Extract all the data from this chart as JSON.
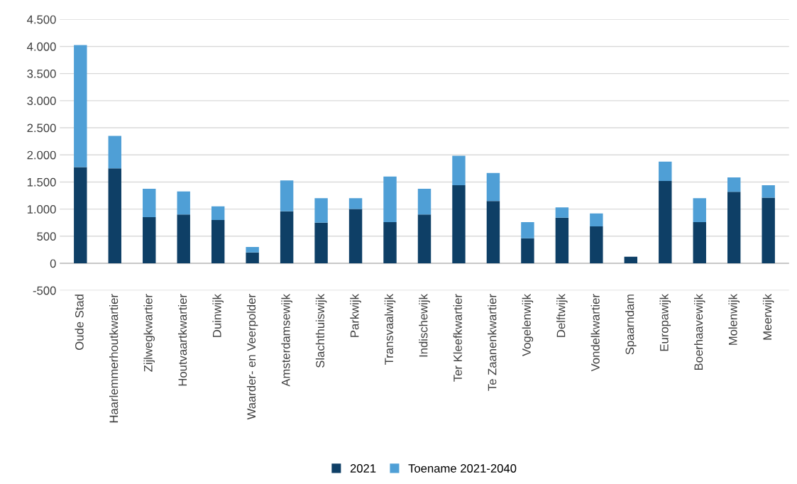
{
  "chart_data": {
    "type": "bar",
    "stacked": true,
    "categories": [
      "Oude Stad",
      "Haarlemmerhoutkwartier",
      "Zijlwegkwartier",
      "Houtvaartkwartier",
      "Duinwijk",
      "Waarder- en Veerpolder",
      "Amsterdamsewijk",
      "Slachthuiswijk",
      "Parkwijk",
      "Transvaalwijk",
      "Indischewijk",
      "Ter Kleefkwartier",
      "Te Zaanenkwartier",
      "Vogelenwijk",
      "Delftwijk",
      "Vondelkwartier",
      "Spaarndam",
      "Europawijk",
      "Boerhaavewijk",
      "Molenwijk",
      "Meerwijk"
    ],
    "series": [
      {
        "name": "2021",
        "color": "#0e3f66",
        "values": [
          1775,
          1750,
          850,
          900,
          800,
          200,
          960,
          750,
          1000,
          760,
          900,
          1440,
          1150,
          460,
          840,
          680,
          120,
          1520,
          760,
          1320,
          1210
        ]
      },
      {
        "name": "Toename 2021-2040",
        "color": "#4f9fd6",
        "values": [
          2250,
          600,
          525,
          425,
          250,
          100,
          570,
          450,
          200,
          840,
          475,
          545,
          515,
          300,
          190,
          240,
          0,
          355,
          440,
          265,
          230
        ]
      }
    ],
    "ylim": [
      -500,
      4500
    ],
    "yticks": [
      {
        "value": -500,
        "label": "-500"
      },
      0,
      {
        "value": 500,
        "label": "500"
      },
      {
        "value": 1000,
        "label": "1.000"
      },
      {
        "value": 1500,
        "label": "1.500"
      },
      {
        "value": 2000,
        "label": "2.000"
      },
      {
        "value": 2500,
        "label": "2.500"
      },
      {
        "value": 3000,
        "label": "3.000"
      },
      {
        "value": 3500,
        "label": "3.500"
      },
      {
        "value": 4000,
        "label": "4.000"
      },
      {
        "value": 4500,
        "label": "4.500"
      }
    ],
    "grid": "y",
    "legend": "bottom"
  }
}
